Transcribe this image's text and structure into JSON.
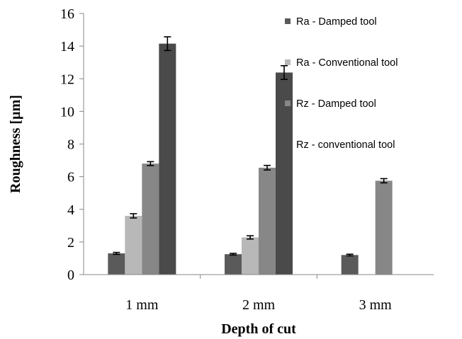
{
  "chart_data": {
    "type": "bar",
    "title": "",
    "xlabel": "Depth of cut",
    "ylabel": "Roughness [µm]",
    "categories": [
      "1 mm",
      "2 mm",
      "3 mm"
    ],
    "ylim": [
      0,
      16
    ],
    "yticks": [
      0,
      2,
      4,
      6,
      8,
      10,
      12,
      14,
      16
    ],
    "grid": false,
    "legend_position": "right",
    "series": [
      {
        "name": "Ra - Damped tool",
        "color": "#5a5a5a",
        "values": [
          1.3,
          1.25,
          1.2
        ],
        "errors": [
          0.06,
          0.05,
          0.05
        ]
      },
      {
        "name": "Ra - Conventional tool",
        "color": "#b8b8b8",
        "values": [
          3.6,
          2.28,
          null
        ],
        "errors": [
          0.13,
          0.1,
          null
        ]
      },
      {
        "name": "Rz - Damped tool",
        "color": "#878787",
        "values": [
          6.8,
          6.55,
          5.75
        ],
        "errors": [
          0.12,
          0.14,
          0.13
        ]
      },
      {
        "name": "Rz - conventional tool",
        "color": "#4a4a4a",
        "values": [
          14.15,
          12.38,
          null
        ],
        "errors": [
          0.42,
          0.42,
          null
        ]
      }
    ]
  }
}
